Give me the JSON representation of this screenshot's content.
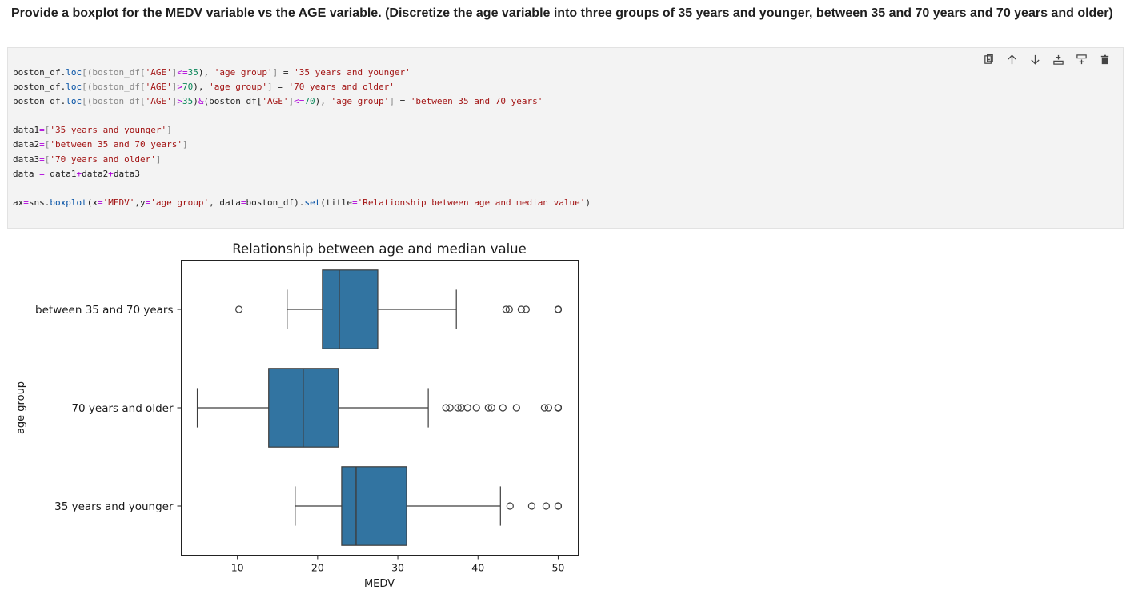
{
  "markdown": {
    "title": "Provide a boxplot for the MEDV variable vs the AGE variable. (Discretize the age variable into three groups of 35 years and younger, between 35 and 70 years and 70 years and older)"
  },
  "toolbar": {
    "buttons": [
      {
        "name": "copy-cell-button",
        "icon": "copy-icon"
      },
      {
        "name": "move-up-button",
        "icon": "arrow-up-icon"
      },
      {
        "name": "move-down-button",
        "icon": "arrow-down-icon"
      },
      {
        "name": "add-above-button",
        "icon": "insert-above-icon"
      },
      {
        "name": "add-below-button",
        "icon": "insert-below-icon"
      },
      {
        "name": "delete-cell-button",
        "icon": "trash-icon"
      }
    ]
  },
  "code": {
    "lines": [
      [
        [
          "boston_df.",
          ""
        ],
        [
          "loc",
          "f"
        ],
        [
          "[(boston_df[",
          "g"
        ],
        [
          "'AGE'",
          "s"
        ],
        [
          "]",
          "g"
        ],
        [
          "<=",
          "o"
        ],
        [
          "35",
          "n"
        ],
        [
          "), ",
          ""
        ],
        [
          "'age group'",
          "s"
        ],
        [
          "] ",
          "g"
        ],
        [
          "=",
          ""
        ],
        [
          " ",
          ""
        ],
        [
          "'35 years and younger'",
          "s"
        ]
      ],
      [
        [
          "boston_df.",
          ""
        ],
        [
          "loc",
          "f"
        ],
        [
          "[(boston_df[",
          "g"
        ],
        [
          "'AGE'",
          "s"
        ],
        [
          "]",
          "g"
        ],
        [
          ">",
          "o"
        ],
        [
          "70",
          "n"
        ],
        [
          "), ",
          ""
        ],
        [
          "'age group'",
          "s"
        ],
        [
          "] ",
          "g"
        ],
        [
          "=",
          ""
        ],
        [
          " ",
          ""
        ],
        [
          "'70 years and older'",
          "s"
        ]
      ],
      [
        [
          "boston_df.",
          ""
        ],
        [
          "loc",
          "f"
        ],
        [
          "[(boston_df[",
          "g"
        ],
        [
          "'AGE'",
          "s"
        ],
        [
          "]",
          "g"
        ],
        [
          ">",
          "o"
        ],
        [
          "35",
          "n"
        ],
        [
          ")",
          ""
        ],
        [
          "&",
          "o"
        ],
        [
          "(boston_df[",
          ""
        ],
        [
          "'AGE'",
          "s"
        ],
        [
          "]",
          "g"
        ],
        [
          "<=",
          "o"
        ],
        [
          "70",
          "n"
        ],
        [
          "), ",
          ""
        ],
        [
          "'age group'",
          "s"
        ],
        [
          "] ",
          "g"
        ],
        [
          "=",
          ""
        ],
        [
          " ",
          ""
        ],
        [
          "'between 35 and 70 years'",
          "s"
        ]
      ],
      [],
      [
        [
          "data1",
          ""
        ],
        [
          "=",
          "o"
        ],
        [
          "[",
          "g"
        ],
        [
          "'35 years and younger'",
          "s"
        ],
        [
          "]",
          "g"
        ]
      ],
      [
        [
          "data2",
          ""
        ],
        [
          "=",
          "o"
        ],
        [
          "[",
          "g"
        ],
        [
          "'between 35 and 70 years'",
          "s"
        ],
        [
          "]",
          "g"
        ]
      ],
      [
        [
          "data3",
          ""
        ],
        [
          "=",
          "o"
        ],
        [
          "[",
          "g"
        ],
        [
          "'70 years and older'",
          "s"
        ],
        [
          "]",
          "g"
        ]
      ],
      [
        [
          "data ",
          ""
        ],
        [
          "=",
          "o"
        ],
        [
          " data1",
          ""
        ],
        [
          "+",
          "o"
        ],
        [
          "data2",
          ""
        ],
        [
          "+",
          "o"
        ],
        [
          "data3",
          ""
        ]
      ],
      [],
      [
        [
          "ax",
          ""
        ],
        [
          "=",
          "o"
        ],
        [
          "sns.",
          ""
        ],
        [
          "boxplot",
          "f"
        ],
        [
          "(x",
          ""
        ],
        [
          "=",
          "o"
        ],
        [
          "'MEDV'",
          "s"
        ],
        [
          ",y",
          ""
        ],
        [
          "=",
          "o"
        ],
        [
          "'age group'",
          "s"
        ],
        [
          ", data",
          ""
        ],
        [
          "=",
          "o"
        ],
        [
          "boston_df).",
          ""
        ],
        [
          "set",
          "f"
        ],
        [
          "(title",
          ""
        ],
        [
          "=",
          "o"
        ],
        [
          "'Relationship between age and median value'",
          "s"
        ],
        [
          ")",
          ""
        ]
      ]
    ]
  },
  "chart_data": {
    "type": "boxplot",
    "title": "Relationship between age and median value",
    "xlabel": "MEDV",
    "ylabel": "age group",
    "xlim": [
      3,
      52.5
    ],
    "xticks": [
      10,
      20,
      30,
      40,
      50
    ],
    "box_color": "#3274a1",
    "categories": [
      "between 35 and 70 years",
      "70 years and older",
      "35 years and younger"
    ],
    "boxes": [
      {
        "label": "between 35 and 70 years",
        "whisker_low": 16.2,
        "q1": 20.6,
        "median": 22.7,
        "q3": 27.5,
        "whisker_high": 37.3,
        "outliers": [
          10.2,
          43.5,
          43.9,
          45.4,
          46.0,
          50,
          50,
          50
        ]
      },
      {
        "label": "70 years and older",
        "whisker_low": 5.0,
        "q1": 13.9,
        "median": 18.2,
        "q3": 22.6,
        "whisker_high": 33.8,
        "outliers": [
          36.0,
          36.5,
          37.5,
          37.9,
          38.7,
          39.8,
          41.3,
          41.7,
          43.1,
          44.8,
          48.3,
          48.8,
          50,
          50,
          50,
          50
        ]
      },
      {
        "label": "35 years and younger",
        "whisker_low": 17.2,
        "q1": 23.0,
        "median": 24.8,
        "q3": 31.1,
        "whisker_high": 42.8,
        "outliers": [
          44.0,
          46.7,
          48.5,
          50,
          50
        ]
      }
    ]
  }
}
